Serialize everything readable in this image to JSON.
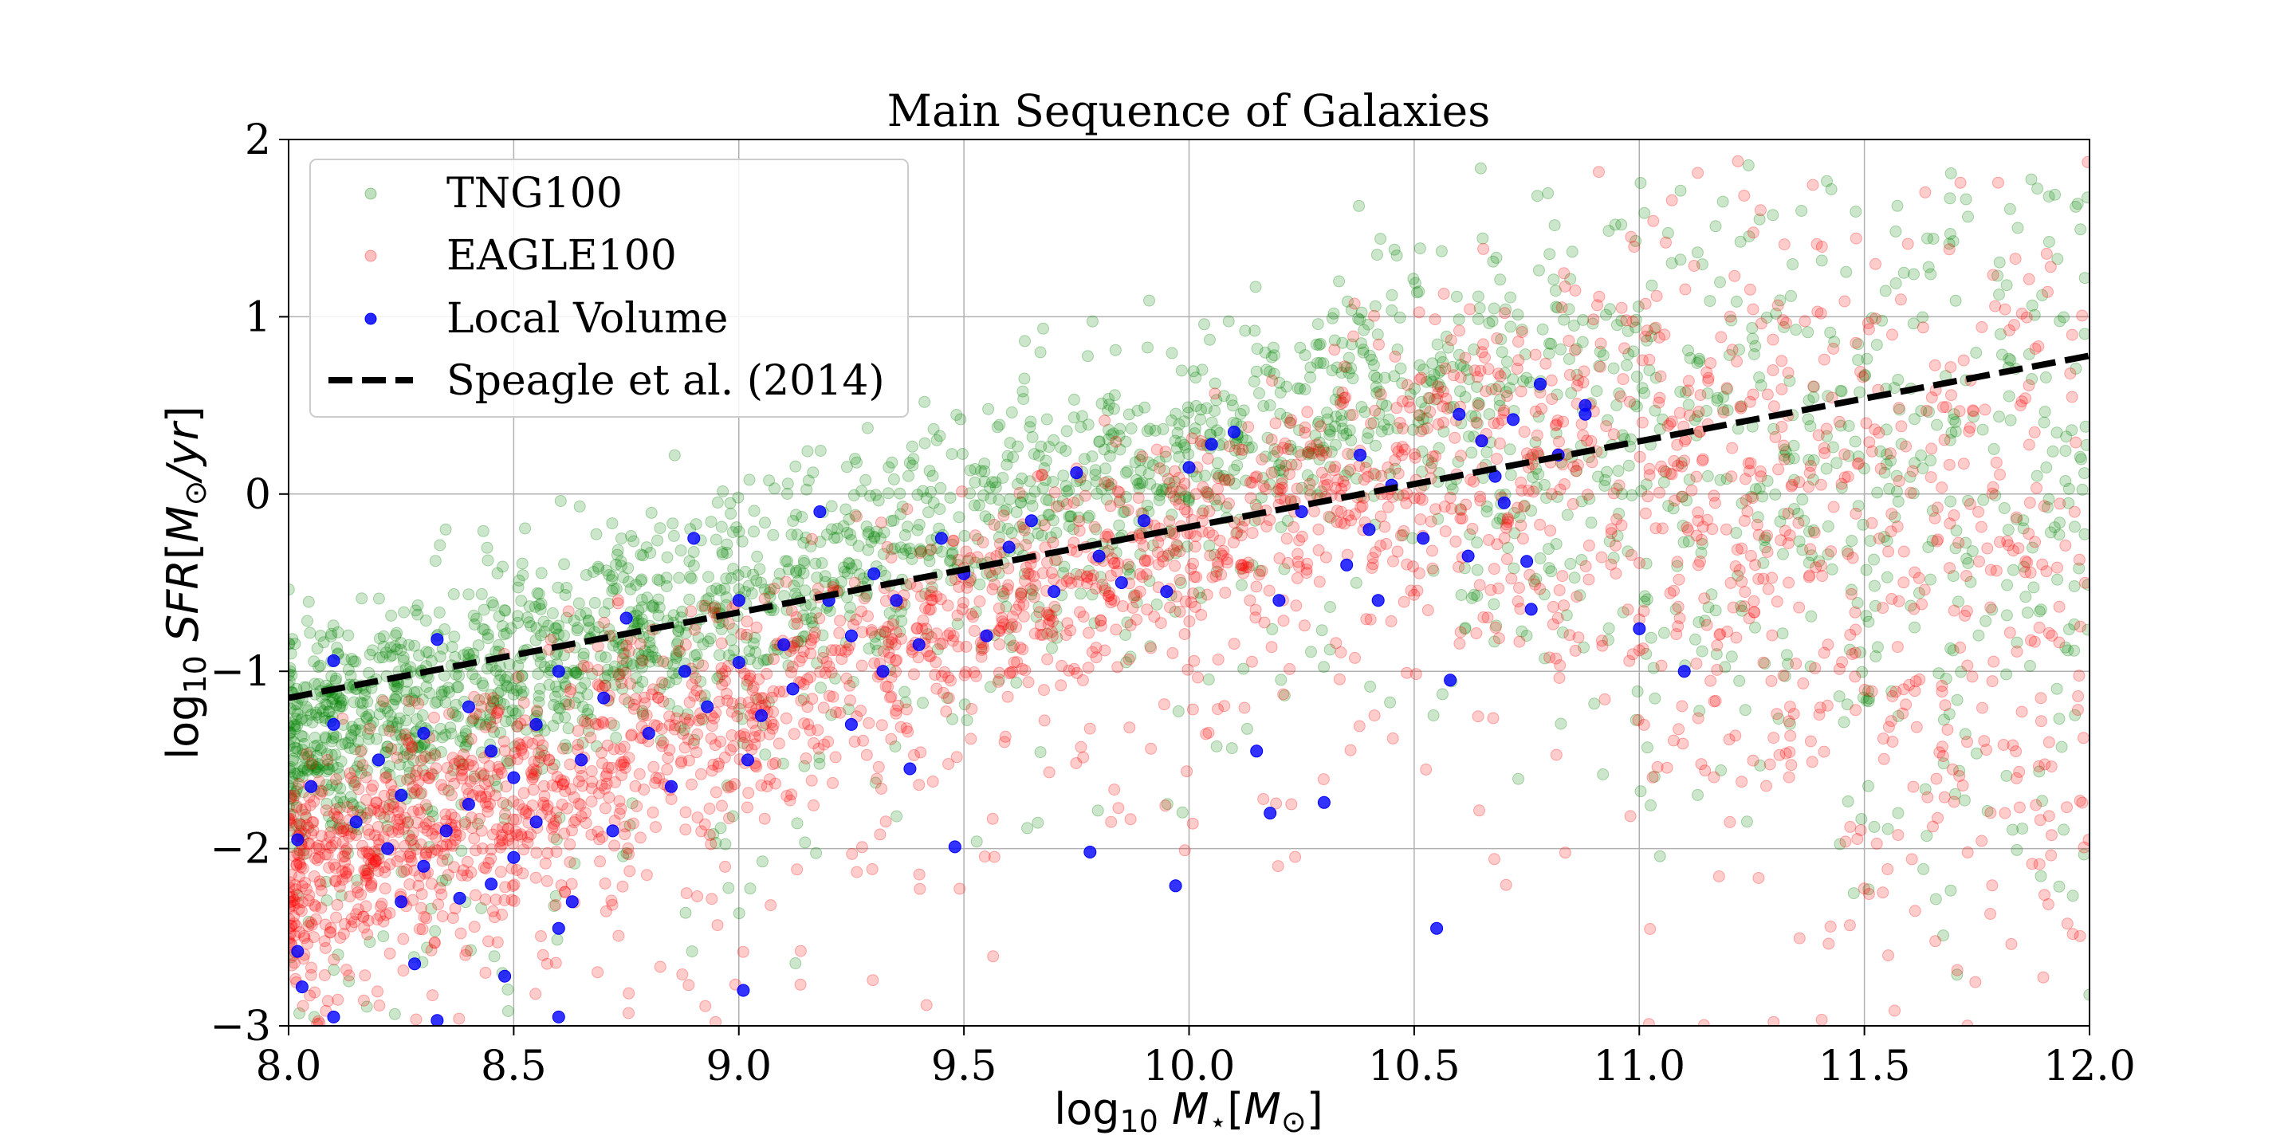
{
  "chart_data": {
    "type": "scatter",
    "title": "Main Sequence of Galaxies",
    "xlabel": "log10 M⋆[M⊙]",
    "ylabel": "log10 SFR[M⊙/yr]",
    "xlim": [
      8.0,
      12.0
    ],
    "ylim": [
      -3,
      2
    ],
    "grid": true,
    "legend_position": "top-left",
    "x_ticks": [
      "8.0",
      "8.5",
      "9.0",
      "9.5",
      "10.0",
      "10.5",
      "11.0",
      "11.5",
      "12.0"
    ],
    "y_ticks": [
      "2",
      "1",
      "0",
      "−1",
      "−2",
      "−3"
    ],
    "series": [
      {
        "name": "TNG100",
        "kind": "scatter",
        "color": "#008000",
        "alpha": 0.2,
        "note": "dense cloud; main-sequence ridge SFR ≈ -1.4 at M=8.0 rising to ≈ 0.6 at M=10.5, scatter wide at high mass",
        "ridge": [
          [
            8.0,
            -1.4
          ],
          [
            8.5,
            -1.0
          ],
          [
            9.0,
            -0.6
          ],
          [
            9.5,
            -0.15
          ],
          [
            10.0,
            0.2
          ],
          [
            10.5,
            0.6
          ],
          [
            11.0,
            0.4
          ],
          [
            11.5,
            0.2
          ],
          [
            12.0,
            0.1
          ]
        ]
      },
      {
        "name": "EAGLE100",
        "kind": "scatter",
        "color": "#ff0000",
        "alpha": 0.2,
        "note": "dense cloud below TNG100 at low mass; ridge SFR ≈ -2.2 at M=8.0 rising to ≈ 0.2 at M=10.5",
        "ridge": [
          [
            8.0,
            -2.2
          ],
          [
            8.5,
            -1.7
          ],
          [
            9.0,
            -1.2
          ],
          [
            9.5,
            -0.7
          ],
          [
            10.0,
            -0.25
          ],
          [
            10.5,
            0.2
          ],
          [
            11.0,
            0.1
          ],
          [
            11.5,
            -0.5
          ]
        ]
      },
      {
        "name": "Local Volume",
        "kind": "scatter",
        "color": "#0000ff",
        "alpha": 0.8,
        "points": [
          [
            8.1,
            -0.94
          ],
          [
            8.33,
            -0.82
          ],
          [
            8.1,
            -1.3
          ],
          [
            8.05,
            -1.65
          ],
          [
            8.02,
            -1.95
          ],
          [
            8.02,
            -2.58
          ],
          [
            8.03,
            -2.78
          ],
          [
            8.1,
            -2.95
          ],
          [
            8.15,
            -1.85
          ],
          [
            8.2,
            -1.5
          ],
          [
            8.22,
            -2.0
          ],
          [
            8.25,
            -1.7
          ],
          [
            8.25,
            -2.3
          ],
          [
            8.3,
            -1.35
          ],
          [
            8.3,
            -2.1
          ],
          [
            8.28,
            -2.65
          ],
          [
            8.35,
            -1.9
          ],
          [
            8.4,
            -1.2
          ],
          [
            8.4,
            -1.75
          ],
          [
            8.45,
            -2.2
          ],
          [
            8.45,
            -1.45
          ],
          [
            8.5,
            -1.6
          ],
          [
            8.5,
            -2.05
          ],
          [
            8.55,
            -1.3
          ],
          [
            8.55,
            -1.85
          ],
          [
            8.6,
            -1.0
          ],
          [
            8.6,
            -2.45
          ],
          [
            8.63,
            -2.3
          ],
          [
            8.65,
            -1.5
          ],
          [
            8.7,
            -1.15
          ],
          [
            8.72,
            -1.9
          ],
          [
            8.75,
            -0.7
          ],
          [
            8.8,
            -1.35
          ],
          [
            8.85,
            -1.65
          ],
          [
            8.88,
            -1.0
          ],
          [
            8.9,
            -0.25
          ],
          [
            8.93,
            -1.2
          ],
          [
            9.0,
            -0.6
          ],
          [
            9.0,
            -0.95
          ],
          [
            9.02,
            -1.5
          ],
          [
            9.05,
            -1.25
          ],
          [
            9.1,
            -0.85
          ],
          [
            9.12,
            -1.1
          ],
          [
            9.18,
            -0.1
          ],
          [
            9.2,
            -0.6
          ],
          [
            9.25,
            -0.8
          ],
          [
            9.25,
            -1.3
          ],
          [
            9.3,
            -0.45
          ],
          [
            9.32,
            -1.0
          ],
          [
            9.35,
            -0.6
          ],
          [
            9.38,
            -1.55
          ],
          [
            9.4,
            -0.85
          ],
          [
            9.45,
            -0.25
          ],
          [
            9.48,
            -1.99
          ],
          [
            9.5,
            -0.45
          ],
          [
            9.55,
            -0.8
          ],
          [
            9.6,
            -0.3
          ],
          [
            9.65,
            -0.15
          ],
          [
            9.7,
            -0.55
          ],
          [
            9.75,
            0.12
          ],
          [
            9.8,
            -0.35
          ],
          [
            9.85,
            -0.5
          ],
          [
            9.9,
            -0.15
          ],
          [
            9.95,
            -0.55
          ],
          [
            9.97,
            -2.21
          ],
          [
            10.0,
            0.15
          ],
          [
            10.05,
            0.28
          ],
          [
            10.1,
            0.35
          ],
          [
            10.15,
            -1.45
          ],
          [
            10.18,
            -1.8
          ],
          [
            10.2,
            -0.6
          ],
          [
            10.25,
            -0.1
          ],
          [
            10.3,
            -1.74
          ],
          [
            10.35,
            -0.4
          ],
          [
            10.38,
            0.22
          ],
          [
            10.4,
            -0.2
          ],
          [
            10.42,
            -0.6
          ],
          [
            10.45,
            0.05
          ],
          [
            10.52,
            -0.25
          ],
          [
            10.55,
            -2.45
          ],
          [
            10.58,
            -1.05
          ],
          [
            10.6,
            0.45
          ],
          [
            10.62,
            -0.35
          ],
          [
            10.65,
            0.3
          ],
          [
            10.68,
            0.1
          ],
          [
            10.7,
            -0.05
          ],
          [
            10.72,
            0.42
          ],
          [
            10.75,
            -0.38
          ],
          [
            10.76,
            -0.65
          ],
          [
            10.78,
            0.62
          ],
          [
            10.82,
            0.22
          ],
          [
            10.88,
            0.5
          ],
          [
            11.0,
            -0.76
          ],
          [
            11.1,
            -1.0
          ],
          [
            10.88,
            0.45
          ],
          [
            8.38,
            -2.28
          ],
          [
            8.48,
            -2.72
          ],
          [
            8.6,
            -2.95
          ],
          [
            9.01,
            -2.8
          ],
          [
            9.78,
            -2.02
          ],
          [
            8.33,
            -2.97
          ]
        ]
      },
      {
        "name": "Speagle et al. (2014)",
        "kind": "line",
        "style": "dashed",
        "color": "#000000",
        "x": [
          8.0,
          12.0
        ],
        "y": [
          -1.15,
          0.78
        ]
      }
    ]
  }
}
